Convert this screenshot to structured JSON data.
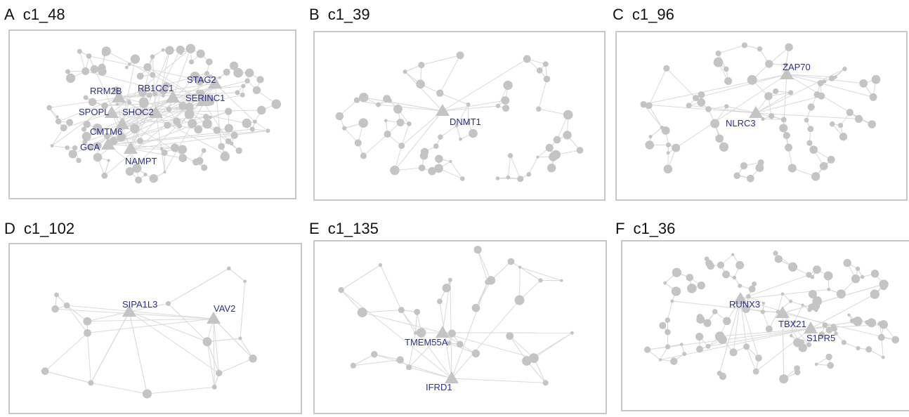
{
  "panels": [
    {
      "letter": "A",
      "name": "c1_48",
      "genes": [
        "RRM2B",
        "RB1CC1",
        "STAG2",
        "SERINC1",
        "SPOPL",
        "SHOC2",
        "CMTM6",
        "GCA",
        "NAMPT"
      ]
    },
    {
      "letter": "B",
      "name": "c1_39",
      "genes": [
        "DNMT1"
      ]
    },
    {
      "letter": "C",
      "name": "c1_96",
      "genes": [
        "ZAP70",
        "NLRC3"
      ]
    },
    {
      "letter": "D",
      "name": "c1_102",
      "genes": [
        "SIPA1L3",
        "VAV2"
      ]
    },
    {
      "letter": "E",
      "name": "c1_135",
      "genes": [
        "TMEM55A",
        "IFRD1"
      ]
    },
    {
      "letter": "F",
      "name": "c1_36",
      "genes": [
        "RUNX3",
        "TBX21",
        "S1PR5"
      ]
    }
  ],
  "colors": {
    "node": "#c4c4c4",
    "edge": "#dadada",
    "label": "#2b2f8f",
    "border": "#c8c8c8"
  }
}
